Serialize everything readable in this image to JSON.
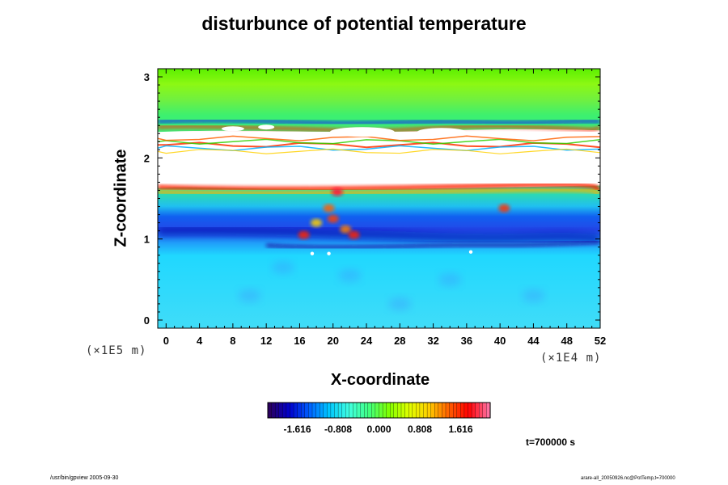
{
  "chart_data": {
    "type": "heatmap",
    "title": "disturbunce of potential temperature",
    "xlabel": "X-coordinate",
    "ylabel": "Z-coordinate",
    "x_unit": "(×1E4 m)",
    "y_unit": "(×1E5 m)",
    "xlim": [
      -1,
      52
    ],
    "ylim": [
      -0.1,
      3.1
    ],
    "x_ticks": [
      "0",
      "4",
      "8",
      "12",
      "16",
      "20",
      "24",
      "28",
      "32",
      "36",
      "40",
      "44",
      "48",
      "52"
    ],
    "y_ticks": [
      "0",
      "1",
      "2",
      "3"
    ],
    "colorbar": {
      "ticks": [
        "-1.616",
        "-0.808",
        "0.000",
        "0.808",
        "1.616"
      ],
      "range": [
        -2.2,
        2.2
      ],
      "colors": [
        "#2a0060",
        "#0000cc",
        "#0060ff",
        "#00c8ff",
        "#40ffe0",
        "#40ff80",
        "#80ff00",
        "#e0ff00",
        "#ffd000",
        "#ff6000",
        "#ff0000",
        "#ff70a0"
      ]
    },
    "bands": [
      {
        "z": [
          2.55,
          3.1
        ],
        "field": "green (~0.2 to 0.6)"
      },
      {
        "z": [
          1.6,
          2.4
        ],
        "field": "white (above colorbar range) with red/blue edges"
      },
      {
        "z": [
          1.15,
          1.6
        ],
        "field": "green to cyan (~0.0 to 0.3)"
      },
      {
        "z": [
          0.8,
          1.15
        ],
        "field": "dark blue (~ -1.0 to -1.4)"
      },
      {
        "z": [
          -0.1,
          0.8
        ],
        "field": "cyan (~ -0.3 to -0.6)"
      }
    ],
    "time_label": "t=700000 s"
  },
  "footer": {
    "left": "/usr/bin/gpview 2005-09-30",
    "right": "arare-all_20050926.nc@PotTemp,t=700000"
  }
}
